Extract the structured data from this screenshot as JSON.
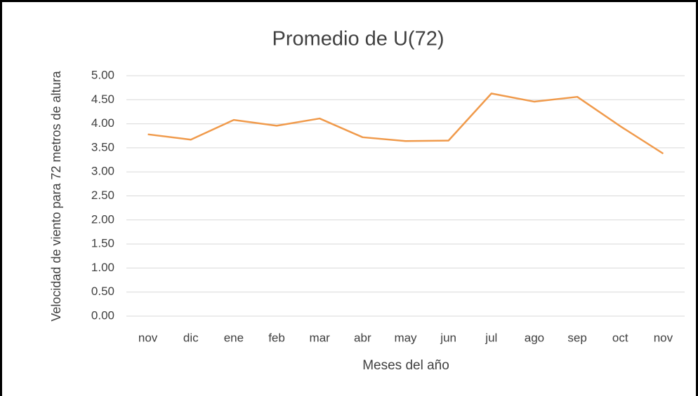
{
  "chart_data": {
    "type": "line",
    "title": "Promedio de U(72)",
    "x_label": "Meses del año",
    "y_label": "Velocidad de viento para 72 metros de altura",
    "categories": [
      "nov",
      "dic",
      "ene",
      "feb",
      "mar",
      "abr",
      "may",
      "jun",
      "jul",
      "ago",
      "sep",
      "oct",
      "nov"
    ],
    "series": [
      {
        "name": "Promedio de U(72)",
        "color": "#f09a4b",
        "values": [
          3.78,
          3.67,
          4.08,
          3.96,
          4.11,
          3.72,
          3.64,
          3.65,
          4.63,
          4.46,
          4.56,
          3.95,
          3.38
        ]
      }
    ],
    "ylim": [
      0,
      5
    ],
    "yticks": [
      {
        "value": 0,
        "label": "0.00"
      },
      {
        "value": 0.5,
        "label": "0.50"
      },
      {
        "value": 1,
        "label": "1.00"
      },
      {
        "value": 1.5,
        "label": "1.50"
      },
      {
        "value": 2,
        "label": "2.00"
      },
      {
        "value": 2.5,
        "label": "2.50"
      },
      {
        "value": 3,
        "label": "3.00"
      },
      {
        "value": 3.5,
        "label": "3.50"
      },
      {
        "value": 4,
        "label": "4.00"
      },
      {
        "value": 4.5,
        "label": "4.50"
      },
      {
        "value": 5,
        "label": "5.00"
      }
    ],
    "grid": true
  }
}
